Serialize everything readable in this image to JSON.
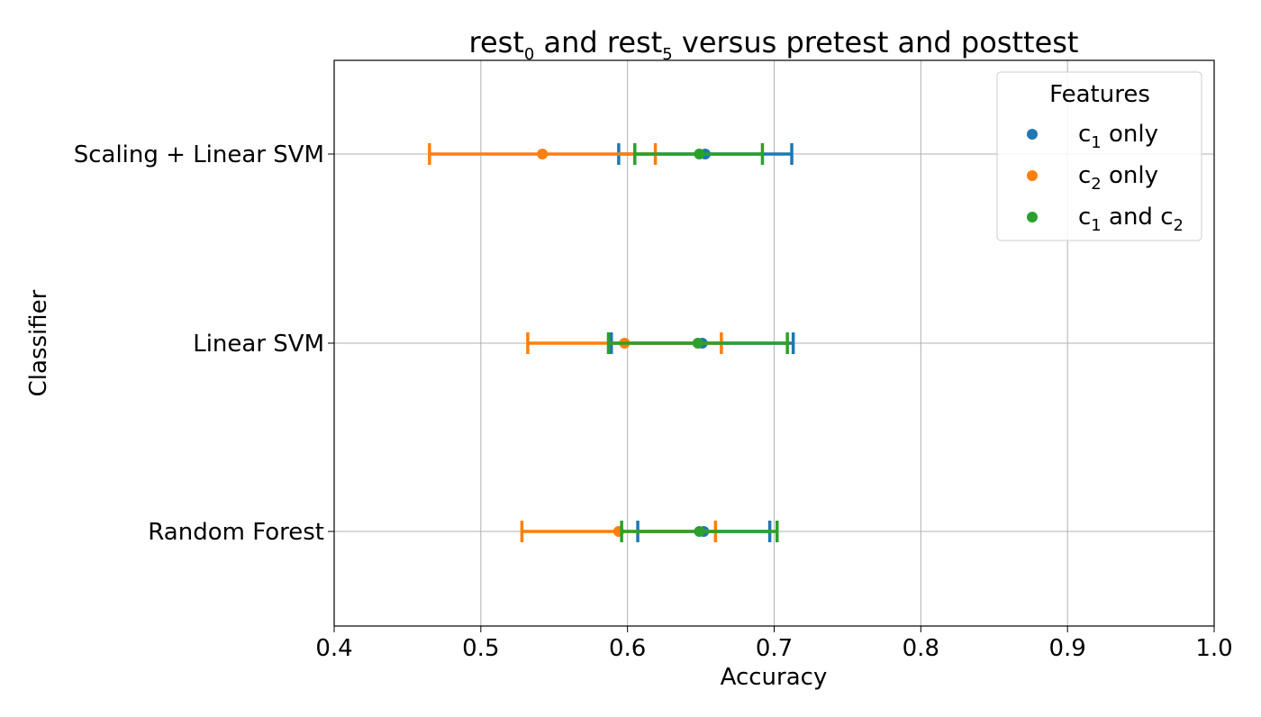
{
  "chart_data": {
    "type": "scatter",
    "title": {
      "pre": "rest",
      "sub1": "0",
      "mid": " and rest",
      "sub2": "5",
      "post": " versus pretest and posttest"
    },
    "xlabel": "Accuracy",
    "ylabel": "Classifier",
    "xlim": [
      0.4,
      1.0
    ],
    "xticks": [
      "0.4",
      "0.5",
      "0.6",
      "0.7",
      "0.8",
      "0.9",
      "1.0"
    ],
    "categories": [
      "Scaling + Linear SVM",
      "Linear SVM",
      "Random Forest"
    ],
    "grid": true,
    "legend": {
      "title": "Features",
      "placement": "top-right"
    },
    "series": [
      {
        "key": "c1",
        "color": "#1f77b4",
        "label": {
          "a": "c",
          "a_sub": "1",
          "rest": " only"
        },
        "points": [
          {
            "category": "Scaling + Linear SVM",
            "value": 0.653,
            "err_low": 0.594,
            "err_high": 0.712
          },
          {
            "category": "Linear SVM",
            "value": 0.651,
            "err_low": 0.589,
            "err_high": 0.713
          },
          {
            "category": "Random Forest",
            "value": 0.652,
            "err_low": 0.607,
            "err_high": 0.697
          }
        ]
      },
      {
        "key": "c2",
        "color": "#ff7f0e",
        "label": {
          "a": "c",
          "a_sub": "2",
          "rest": " only"
        },
        "points": [
          {
            "category": "Scaling + Linear SVM",
            "value": 0.542,
            "err_low": 0.465,
            "err_high": 0.619
          },
          {
            "category": "Linear SVM",
            "value": 0.598,
            "err_low": 0.532,
            "err_high": 0.664
          },
          {
            "category": "Random Forest",
            "value": 0.594,
            "err_low": 0.528,
            "err_high": 0.66
          }
        ]
      },
      {
        "key": "c1c2",
        "color": "#2ca02c",
        "label": {
          "a": "c",
          "a_sub": "1",
          "mid": " and c",
          "b_sub": "2"
        },
        "points": [
          {
            "category": "Scaling + Linear SVM",
            "value": 0.649,
            "err_low": 0.605,
            "err_high": 0.692
          },
          {
            "category": "Linear SVM",
            "value": 0.648,
            "err_low": 0.587,
            "err_high": 0.709
          },
          {
            "category": "Random Forest",
            "value": 0.649,
            "err_low": 0.596,
            "err_high": 0.702
          }
        ]
      }
    ]
  }
}
